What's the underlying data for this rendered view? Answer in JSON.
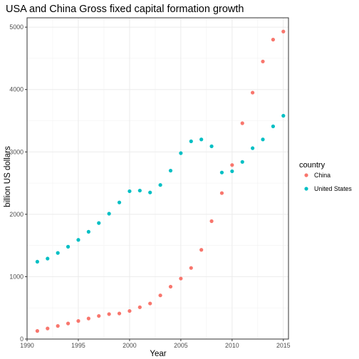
{
  "chart_data": {
    "type": "scatter",
    "title": "USA and China Gross fixed capital formation growth",
    "xlabel": "Year",
    "ylabel": "billion US dollars",
    "xlim": [
      1990,
      2015.5
    ],
    "ylim": [
      0,
      5150
    ],
    "x_ticks": [
      1990,
      1995,
      2000,
      2005,
      2010,
      2015
    ],
    "y_ticks": [
      0,
      1000,
      2000,
      3000,
      4000,
      5000
    ],
    "grid": true,
    "legend": {
      "title": "country",
      "position": "right"
    },
    "series": [
      {
        "name": "China",
        "color": "#F8766D",
        "points": [
          {
            "x": 1991,
            "y": 130
          },
          {
            "x": 1992,
            "y": 170
          },
          {
            "x": 1993,
            "y": 210
          },
          {
            "x": 1994,
            "y": 250
          },
          {
            "x": 1995,
            "y": 290
          },
          {
            "x": 1996,
            "y": 330
          },
          {
            "x": 1997,
            "y": 370
          },
          {
            "x": 1998,
            "y": 400
          },
          {
            "x": 1999,
            "y": 410
          },
          {
            "x": 2000,
            "y": 450
          },
          {
            "x": 2001,
            "y": 510
          },
          {
            "x": 2002,
            "y": 570
          },
          {
            "x": 2003,
            "y": 700
          },
          {
            "x": 2004,
            "y": 840
          },
          {
            "x": 2005,
            "y": 970
          },
          {
            "x": 2006,
            "y": 1140
          },
          {
            "x": 2007,
            "y": 1430
          },
          {
            "x": 2008,
            "y": 1890
          },
          {
            "x": 2009,
            "y": 2340
          },
          {
            "x": 2010,
            "y": 2790
          },
          {
            "x": 2011,
            "y": 3460
          },
          {
            "x": 2012,
            "y": 3950
          },
          {
            "x": 2013,
            "y": 4450
          },
          {
            "x": 2014,
            "y": 4800
          },
          {
            "x": 2015,
            "y": 4930
          }
        ]
      },
      {
        "name": "United States",
        "color": "#00BFC4",
        "points": [
          {
            "x": 1991,
            "y": 1240
          },
          {
            "x": 1992,
            "y": 1290
          },
          {
            "x": 1993,
            "y": 1380
          },
          {
            "x": 1994,
            "y": 1480
          },
          {
            "x": 1995,
            "y": 1590
          },
          {
            "x": 1996,
            "y": 1720
          },
          {
            "x": 1997,
            "y": 1860
          },
          {
            "x": 1998,
            "y": 2010
          },
          {
            "x": 1999,
            "y": 2190
          },
          {
            "x": 2000,
            "y": 2370
          },
          {
            "x": 2001,
            "y": 2380
          },
          {
            "x": 2002,
            "y": 2350
          },
          {
            "x": 2003,
            "y": 2470
          },
          {
            "x": 2004,
            "y": 2700
          },
          {
            "x": 2005,
            "y": 2980
          },
          {
            "x": 2006,
            "y": 3170
          },
          {
            "x": 2007,
            "y": 3200
          },
          {
            "x": 2008,
            "y": 3090
          },
          {
            "x": 2009,
            "y": 2670
          },
          {
            "x": 2010,
            "y": 2690
          },
          {
            "x": 2011,
            "y": 2840
          },
          {
            "x": 2012,
            "y": 3060
          },
          {
            "x": 2013,
            "y": 3200
          },
          {
            "x": 2014,
            "y": 3410
          },
          {
            "x": 2015,
            "y": 3580
          }
        ]
      }
    ]
  }
}
